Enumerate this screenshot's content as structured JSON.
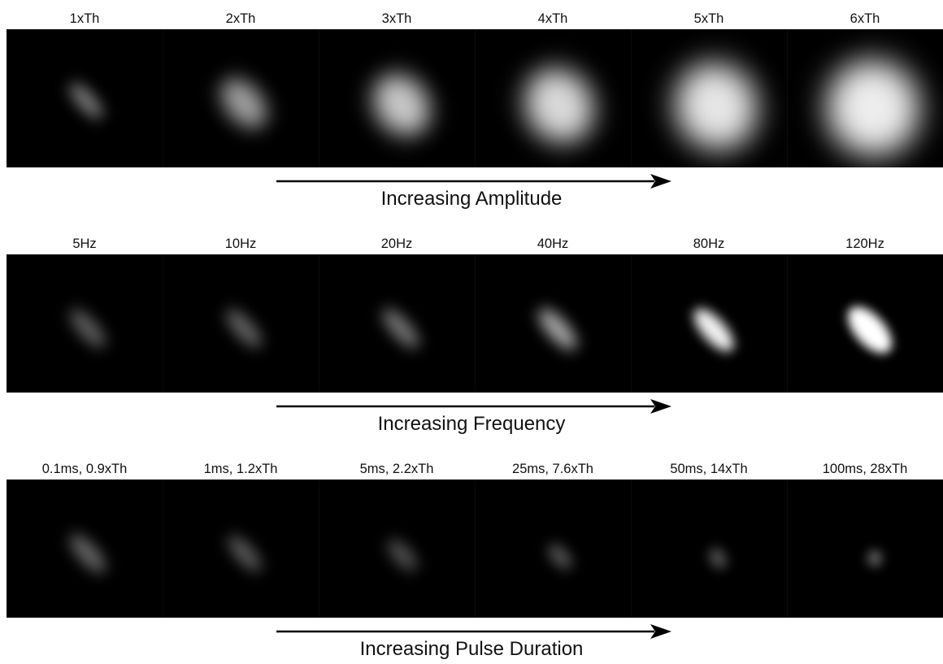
{
  "rows": [
    {
      "labels": [
        "1xTh",
        "2xTh",
        "3xTh",
        "4xTh",
        "5xTh",
        "6xTh"
      ],
      "caption": "Increasing Amplitude"
    },
    {
      "labels": [
        "5Hz",
        "10Hz",
        "20Hz",
        "40Hz",
        "80Hz",
        "120Hz"
      ],
      "caption": "Increasing Frequency"
    },
    {
      "labels": [
        "0.1ms, 0.9xTh",
        "1ms, 1.2xTh",
        "5ms, 2.2xTh",
        "25ms, 7.6xTh",
        "50ms, 14xTh",
        "100ms, 28xTh"
      ],
      "caption": "Increasing Pulse Duration"
    }
  ],
  "colors": {
    "background": "#ffffff",
    "strip": "#000000",
    "arrow": "#000000",
    "phosphene": "#ffffff"
  }
}
